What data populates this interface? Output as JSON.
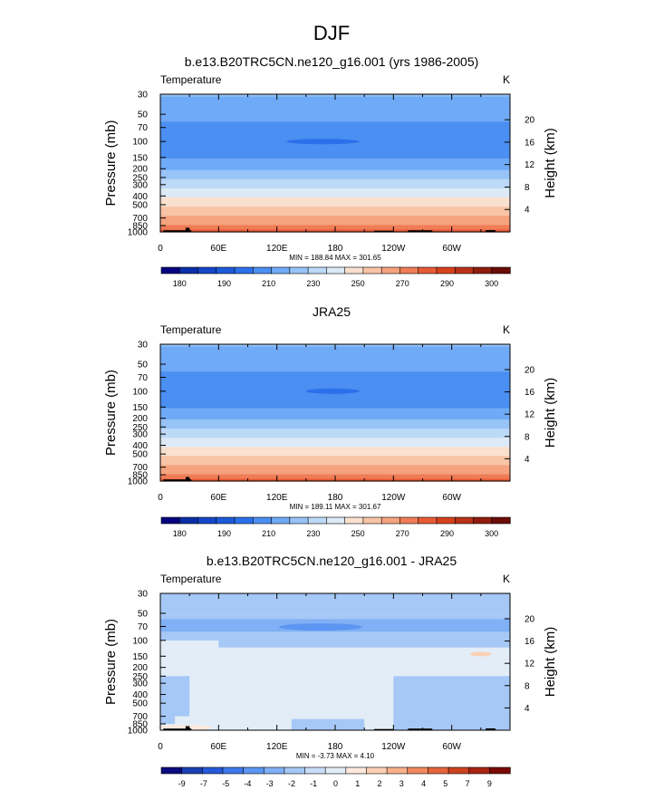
{
  "page_title": "DJF",
  "palette": {
    "abs": [
      "#05037f",
      "#0b2fa7",
      "#1446c8",
      "#1c5ad9",
      "#2b70ea",
      "#4b8ff2",
      "#6faaf6",
      "#97c3f7",
      "#bcd9f7",
      "#dde9f6",
      "#f9e0cf",
      "#f8c4a6",
      "#f5a37f",
      "#ef7d57",
      "#e65a35",
      "#d6421c",
      "#b93218",
      "#8f1c0e",
      "#6a0c07"
    ],
    "diff": [
      "#0a0c7d",
      "#1a3fb2",
      "#2659d8",
      "#3f78eb",
      "#5c96f2",
      "#80b0f5",
      "#a6c8f6",
      "#c8ddf7",
      "#e2edf7",
      "#fde8dc",
      "#fbd0b5",
      "#f8b08a",
      "#f08a5e",
      "#e4633b",
      "#cc4220",
      "#a82412",
      "#7a0a05"
    ]
  },
  "chart_data": [
    {
      "type": "heatmap",
      "title": "b.e13.B20TRC5CN.ne120_g16.001 (yrs 1986-2005)",
      "left_label": "Temperature",
      "right_label": "K",
      "ylabel": "Pressure (mb)",
      "y2label": "Height (km)",
      "xticks": [
        "0",
        "60E",
        "120E",
        "180",
        "120W",
        "60W"
      ],
      "yticks": [
        "30",
        "50",
        "70",
        "100",
        "150",
        "200",
        "250",
        "300",
        "400",
        "500",
        "700",
        "850",
        "1000"
      ],
      "y2ticks": [
        "20",
        "16",
        "12",
        "8",
        "4"
      ],
      "ylim": [
        1000,
        30
      ],
      "log_y": true,
      "stats": "MIN = 188.84  MAX = 301.65",
      "colorbar_labels": [
        "180",
        "190",
        "210",
        "230",
        "250",
        "270",
        "290",
        "300"
      ],
      "profile": [
        [
          30,
          221
        ],
        [
          50,
          214
        ],
        [
          70,
          207
        ],
        [
          100,
          205
        ],
        [
          150,
          210
        ],
        [
          200,
          219
        ],
        [
          250,
          227
        ],
        [
          300,
          235
        ],
        [
          400,
          249
        ],
        [
          500,
          259
        ],
        [
          700,
          273
        ],
        [
          850,
          281
        ],
        [
          1000,
          289
        ]
      ],
      "min_feature": {
        "lon_range": [
          130,
          205
        ],
        "pressure": 100,
        "value": 199
      }
    },
    {
      "type": "heatmap",
      "title": "JRA25",
      "left_label": "Temperature",
      "right_label": "K",
      "ylabel": "Pressure (mb)",
      "y2label": "Height (km)",
      "xticks": [
        "0",
        "60E",
        "120E",
        "180",
        "120W",
        "60W"
      ],
      "yticks": [
        "30",
        "50",
        "70",
        "100",
        "150",
        "200",
        "250",
        "300",
        "400",
        "500",
        "700",
        "850",
        "1000"
      ],
      "y2ticks": [
        "20",
        "16",
        "12",
        "8",
        "4"
      ],
      "ylim": [
        1000,
        30
      ],
      "log_y": true,
      "stats": "MIN = 189.11  MAX = 301.67",
      "colorbar_labels": [
        "180",
        "190",
        "210",
        "230",
        "250",
        "270",
        "290",
        "300"
      ],
      "profile": [
        [
          30,
          221
        ],
        [
          50,
          214
        ],
        [
          70,
          207
        ],
        [
          100,
          205
        ],
        [
          150,
          210
        ],
        [
          200,
          219
        ],
        [
          250,
          227
        ],
        [
          300,
          235
        ],
        [
          400,
          249
        ],
        [
          500,
          259
        ],
        [
          700,
          273
        ],
        [
          850,
          281
        ],
        [
          1000,
          289
        ]
      ],
      "min_feature": {
        "lon_range": [
          150,
          205
        ],
        "pressure": 100,
        "value": 199
      }
    },
    {
      "type": "heatmap",
      "title": "b.e13.B20TRC5CN.ne120_g16.001 - JRA25",
      "left_label": "Temperature",
      "right_label": "K",
      "ylabel": "Pressure (mb)",
      "y2label": "Height (km)",
      "xticks": [
        "0",
        "60E",
        "120E",
        "180",
        "120W",
        "60W"
      ],
      "yticks": [
        "30",
        "50",
        "70",
        "100",
        "150",
        "200",
        "250",
        "300",
        "400",
        "500",
        "700",
        "850",
        "1000"
      ],
      "y2ticks": [
        "20",
        "16",
        "12",
        "8",
        "4"
      ],
      "ylim": [
        1000,
        30
      ],
      "log_y": true,
      "stats": "MIN = -3.73  MAX =  4.10",
      "colorbar_labels": [
        "-9",
        "-7",
        "-5",
        "-4",
        "-3",
        "-2",
        "-1",
        "0",
        "1",
        "2",
        "3",
        "4",
        "5",
        "7",
        "9"
      ]
    }
  ]
}
